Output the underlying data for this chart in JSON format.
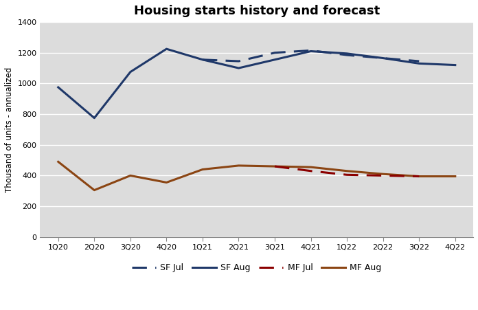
{
  "title": "Housing starts history and forecast",
  "ylabel": "Thousand of units - annualized",
  "x_labels": [
    "1Q20",
    "2Q20",
    "3Q20",
    "4Q20",
    "1Q21",
    "2Q21",
    "3Q21",
    "4Q21",
    "1Q22",
    "2Q22",
    "3Q22",
    "4Q22"
  ],
  "ylim": [
    0,
    1400
  ],
  "yticks": [
    0,
    200,
    400,
    600,
    800,
    1000,
    1200,
    1400
  ],
  "sf_aug": [
    975,
    775,
    1075,
    1225,
    1155,
    1100,
    1155,
    1210,
    1195,
    1165,
    1130,
    1120
  ],
  "sf_jul": [
    null,
    null,
    null,
    null,
    1155,
    1145,
    1200,
    1215,
    1185,
    1165,
    1145,
    null
  ],
  "mf_aug": [
    490,
    305,
    400,
    355,
    440,
    465,
    460,
    455,
    430,
    410,
    395,
    395
  ],
  "mf_jul": [
    null,
    null,
    null,
    null,
    null,
    null,
    460,
    430,
    405,
    400,
    395,
    null
  ],
  "sf_aug_color": "#1F3869",
  "sf_jul_color": "#1F3869",
  "mf_aug_color": "#8B4513",
  "mf_jul_color": "#8B0000",
  "background_color": "#DCDCDC",
  "grid_color": "#ffffff",
  "title_fontsize": 13,
  "axis_fontsize": 8.5,
  "tick_fontsize": 8
}
